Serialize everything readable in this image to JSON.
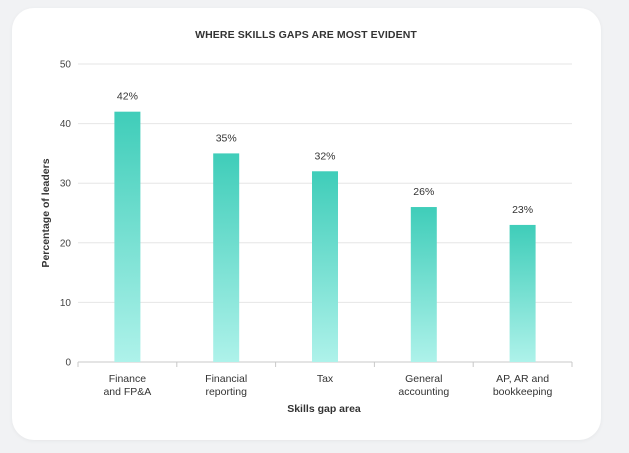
{
  "chart_data": {
    "type": "bar",
    "title": "WHERE SKILLS GAPS ARE MOST EVIDENT",
    "xlabel": "Skills gap area",
    "ylabel": "Percentage of leaders",
    "categories": [
      [
        "Finance",
        "and FP&A"
      ],
      [
        "Financial",
        "reporting"
      ],
      [
        "Tax"
      ],
      [
        "General",
        "accounting"
      ],
      [
        "AP, AR and",
        "bookkeeping"
      ]
    ],
    "values": [
      42,
      35,
      32,
      26,
      23
    ],
    "value_labels": [
      "42%",
      "35%",
      "32%",
      "26%",
      "23%"
    ],
    "ylim": [
      0,
      50
    ],
    "yticks": [
      0,
      10,
      20,
      30,
      40,
      50
    ],
    "grid": true,
    "colors": {
      "bar_top": "#3fcdb9",
      "bar_bottom": "#aef2ea",
      "grid": "#e6e6e6",
      "axis": "#c8c8c8"
    }
  }
}
